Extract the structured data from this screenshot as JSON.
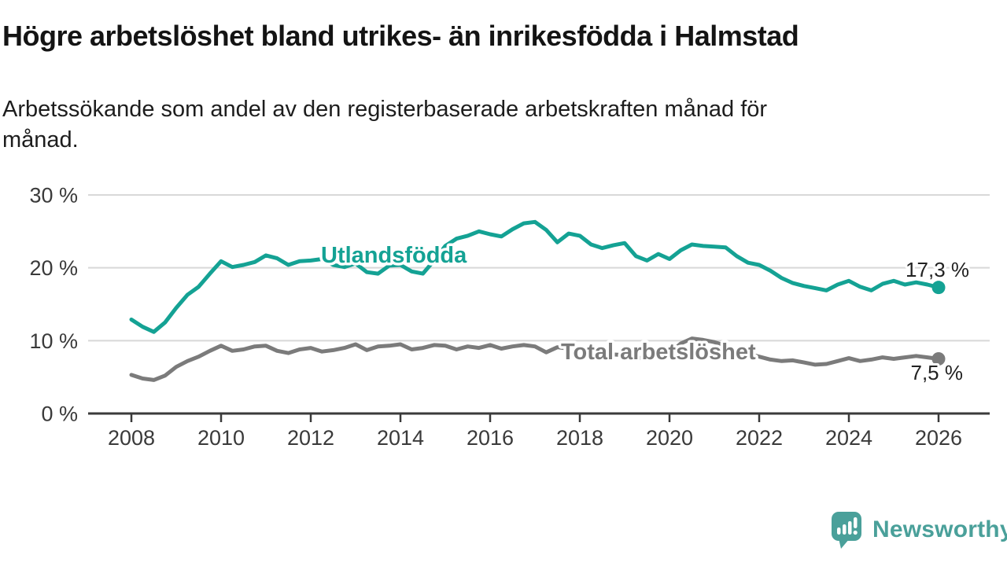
{
  "title": "Högre arbetslöshet bland utrikes- än inrikesfödda i Halmstad",
  "subtitle": "Arbetssökande som andel av den registerbaserade arbetskraften månad för månad.",
  "branding": {
    "logo_text": "Newsworthy"
  },
  "colors": {
    "foreign_born_line": "#14a294",
    "total_line": "#7b7b7b",
    "gridline": "#d8d8d8",
    "axis": "#3a3a3a",
    "tick_text": "#3a3a3a",
    "end_label_text": "#222222",
    "logo_teal": "#4aa09a"
  },
  "chart_data": {
    "type": "line",
    "title": "Högre arbetslöshet bland utrikes- än inrikesfödda i Halmstad",
    "subtitle": "Arbetssökande som andel av den registerbaserade arbetskraften månad för månad.",
    "x_unit": "decimal_year (quarterly samples of monthly data)",
    "xlim": [
      2007,
      2027
    ],
    "ylim": [
      0,
      30
    ],
    "grid": "horizontal",
    "legend_position": "inline-labels",
    "y_ticks": [
      "30 %",
      "20 %",
      "10 %",
      "0 %"
    ],
    "y_tick_values": [
      30,
      20,
      10,
      0
    ],
    "x_ticks": [
      "2008",
      "2010",
      "2012",
      "2014",
      "2016",
      "2018",
      "2020",
      "2022",
      "2024",
      "2026"
    ],
    "x_tick_values": [
      2008,
      2010,
      2012,
      2014,
      2016,
      2018,
      2020,
      2022,
      2024,
      2026
    ],
    "x": [
      2008,
      2008.25,
      2008.5,
      2008.75,
      2009,
      2009.25,
      2009.5,
      2009.75,
      2010,
      2010.25,
      2010.5,
      2010.75,
      2011,
      2011.25,
      2011.5,
      2011.75,
      2012,
      2012.25,
      2012.5,
      2012.75,
      2013,
      2013.25,
      2013.5,
      2013.75,
      2014,
      2014.25,
      2014.5,
      2014.75,
      2015,
      2015.25,
      2015.5,
      2015.75,
      2016,
      2016.25,
      2016.5,
      2016.75,
      2017,
      2017.25,
      2017.5,
      2017.75,
      2018,
      2018.25,
      2018.5,
      2018.75,
      2019,
      2019.25,
      2019.5,
      2019.75,
      2020,
      2020.25,
      2020.5,
      2020.75,
      2021,
      2021.25,
      2021.5,
      2021.75,
      2022,
      2022.25,
      2022.5,
      2022.75,
      2023,
      2023.25,
      2023.5,
      2023.75,
      2024,
      2024.25,
      2024.5,
      2024.75,
      2025,
      2025.25,
      2025.5,
      2025.75,
      2026
    ],
    "series": [
      {
        "name": "Utlandsfödda",
        "color": "#14a294",
        "end_value": 17.3,
        "end_label": "17,3 %",
        "values": [
          12.9,
          11.9,
          11.2,
          12.5,
          14.5,
          16.3,
          17.4,
          19.2,
          20.9,
          20.1,
          20.4,
          20.8,
          21.7,
          21.3,
          20.4,
          20.9,
          21.0,
          21.2,
          20.4,
          20.1,
          20.6,
          19.4,
          19.2,
          20.3,
          20.4,
          19.5,
          19.2,
          21.0,
          23.0,
          24.0,
          24.4,
          25.0,
          24.6,
          24.3,
          25.3,
          26.1,
          26.3,
          25.2,
          23.5,
          24.7,
          24.4,
          23.2,
          22.7,
          23.1,
          23.4,
          21.6,
          21.0,
          21.9,
          21.2,
          22.4,
          23.2,
          23.0,
          22.9,
          22.8,
          21.6,
          20.7,
          20.4,
          19.6,
          18.6,
          17.9,
          17.5,
          17.2,
          16.9,
          17.7,
          18.2,
          17.4,
          16.9,
          17.8,
          18.2,
          17.7,
          18.0,
          17.7,
          17.3
        ]
      },
      {
        "name": "Total arbetslöshet",
        "color": "#7b7b7b",
        "end_value": 7.5,
        "end_label": "7,5 %",
        "values": [
          5.3,
          4.8,
          4.6,
          5.2,
          6.4,
          7.2,
          7.8,
          8.6,
          9.3,
          8.6,
          8.8,
          9.2,
          9.3,
          8.6,
          8.3,
          8.8,
          9.0,
          8.5,
          8.7,
          9.0,
          9.5,
          8.7,
          9.2,
          9.3,
          9.5,
          8.8,
          9.0,
          9.4,
          9.3,
          8.8,
          9.2,
          9.0,
          9.4,
          8.9,
          9.2,
          9.4,
          9.2,
          8.4,
          9.1,
          8.9,
          8.6,
          8.0,
          7.9,
          8.1,
          8.0,
          7.6,
          7.7,
          8.0,
          8.3,
          9.6,
          10.3,
          10.1,
          9.8,
          9.3,
          8.7,
          8.2,
          7.8,
          7.4,
          7.2,
          7.3,
          7.0,
          6.7,
          6.8,
          7.2,
          7.6,
          7.2,
          7.4,
          7.7,
          7.5,
          7.7,
          7.9,
          7.7,
          7.5
        ]
      }
    ]
  }
}
